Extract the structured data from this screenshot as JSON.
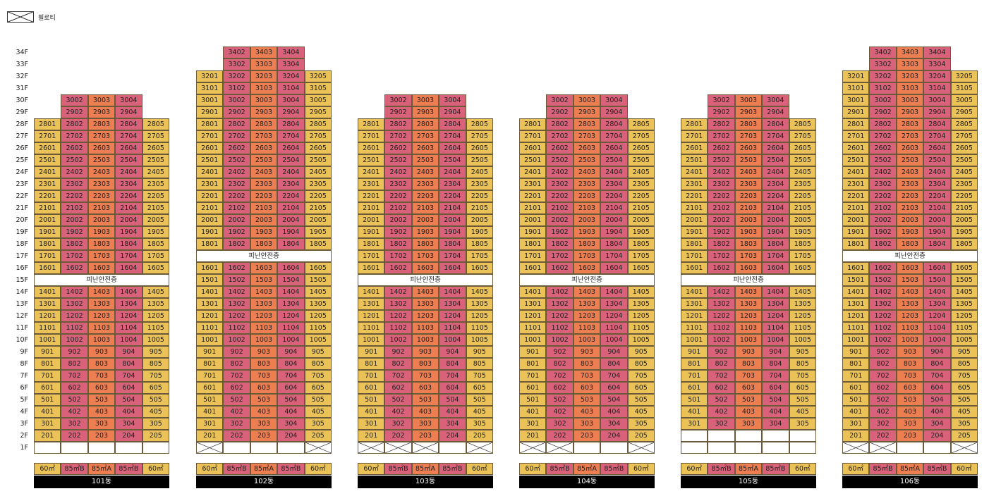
{
  "legend": {
    "label": "필로티",
    "icon": "x-box-icon"
  },
  "colors": {
    "85mB": "#d9627a",
    "85mA": "#ec7e52",
    "60": "#ebc257"
  },
  "floor_labels": [
    "34F",
    "33F",
    "32F",
    "31F",
    "30F",
    "29F",
    "28F",
    "27F",
    "26F",
    "25F",
    "24F",
    "23F",
    "22F",
    "21F",
    "20F",
    "19F",
    "18F",
    "17F",
    "16F",
    "15F",
    "14F",
    "13F",
    "12F",
    "11F",
    "10F",
    "9F",
    "8F",
    "7F",
    "6F",
    "5F",
    "4F",
    "3F",
    "2F",
    "1F"
  ],
  "type_labels": [
    "60㎡",
    "85㎡B",
    "85㎡A",
    "85㎡B",
    "60㎡"
  ],
  "refuge_label": "피난안전층",
  "buildings": [
    {
      "name": "101동",
      "top_floor": 30,
      "outer_top": 28,
      "refuge_floor": 15,
      "first_floor": [
        "empty",
        "empty",
        "empty",
        "empty",
        "empty"
      ]
    },
    {
      "name": "102동",
      "top_floor": 34,
      "outer_top": 32,
      "refuge_floor": 17,
      "first_floor": [
        "pilotis",
        "empty",
        "empty",
        "empty",
        "pilotis"
      ]
    },
    {
      "name": "103동",
      "top_floor": 30,
      "outer_top": 28,
      "refuge_floor": 15,
      "first_floor": [
        "pilotis",
        "pilotis",
        "pilotis",
        "empty",
        "pilotis"
      ]
    },
    {
      "name": "104동",
      "top_floor": 30,
      "outer_top": 28,
      "refuge_floor": 15,
      "first_floor": [
        "pilotis",
        "pilotis",
        "empty",
        "empty",
        "pilotis"
      ]
    },
    {
      "name": "105동",
      "top_floor": 30,
      "outer_top": 28,
      "refuge_floor": 15,
      "first_floor": [
        "empty",
        "empty",
        "empty",
        "empty",
        "empty"
      ],
      "empty_floor": 2
    },
    {
      "name": "106동",
      "top_floor": 34,
      "outer_top": 32,
      "refuge_floor": 17,
      "first_floor": [
        "pilotis",
        "pilotis",
        "empty",
        "empty",
        "pilotis"
      ]
    }
  ]
}
